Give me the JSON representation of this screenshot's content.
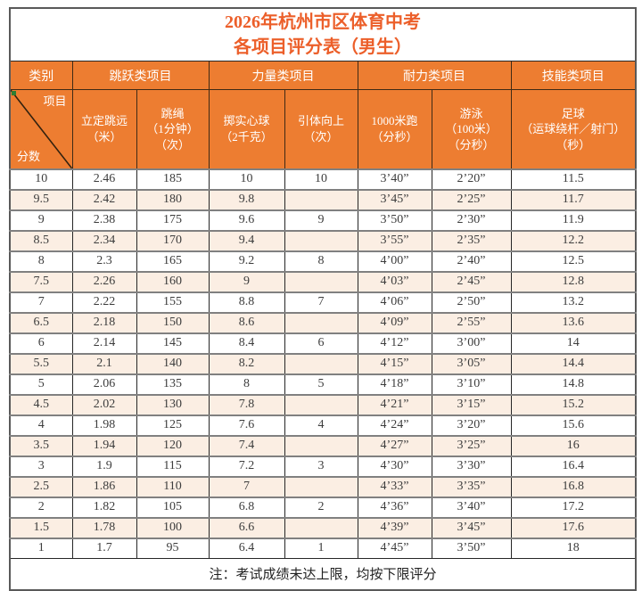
{
  "colors": {
    "header_bg": "#ED7D31",
    "title_text": "#EC5F2A",
    "alt_row_bg": "#FBEEE3",
    "body_text": "#3D3D3D",
    "grid_gray": "#808080",
    "grid_dark": "#262626",
    "outer_border": "#595959",
    "header_text": "#FFFFFF",
    "corner_marker_green": "#2E7D32"
  },
  "title": {
    "line1": "2026年杭州市区体育中考",
    "line2": "各项目评分表（男生）"
  },
  "category_row": {
    "groups": [
      {
        "label": "类别"
      },
      {
        "label": "跳跃类项目"
      },
      {
        "label": "力量类项目"
      },
      {
        "label": "耐力类项目"
      },
      {
        "label": "技能类项目"
      }
    ]
  },
  "column_headers": {
    "corner_top_right": "项目",
    "corner_bottom_left": "分数",
    "items": [
      "立定跳远\n（米）",
      "跳绳\n（1分钟）\n（次）",
      "掷实心球\n（2千克）",
      "引体向上\n（次）",
      "1000米跑\n（分秒）",
      "游泳\n（100米）\n（分秒）",
      "足球\n（运球绕杆／射门）\n（秒）"
    ]
  },
  "table": {
    "rows": [
      {
        "cells": [
          "10",
          "2.46",
          "185",
          "10",
          "10",
          "3’40”",
          "2’20”",
          "11.5"
        ]
      },
      {
        "cells": [
          "9.5",
          "2.42",
          "180",
          "9.8",
          "",
          "3’45”",
          "2’25”",
          "11.7"
        ]
      },
      {
        "cells": [
          "9",
          "2.38",
          "175",
          "9.6",
          "9",
          "3’50”",
          "2’30”",
          "11.9"
        ]
      },
      {
        "cells": [
          "8.5",
          "2.34",
          "170",
          "9.4",
          "",
          "3’55”",
          "2’35”",
          "12.2"
        ]
      },
      {
        "cells": [
          "8",
          "2.3",
          "165",
          "9.2",
          "8",
          "4’00”",
          "2’40”",
          "12.5"
        ]
      },
      {
        "cells": [
          "7.5",
          "2.26",
          "160",
          "9",
          "",
          "4’03”",
          "2’45”",
          "12.8"
        ]
      },
      {
        "cells": [
          "7",
          "2.22",
          "155",
          "8.8",
          "7",
          "4’06”",
          "2’50”",
          "13.2"
        ]
      },
      {
        "cells": [
          "6.5",
          "2.18",
          "150",
          "8.6",
          "",
          "4’09”",
          "2’55”",
          "13.6"
        ]
      },
      {
        "cells": [
          "6",
          "2.14",
          "145",
          "8.4",
          "6",
          "4’12”",
          "3’00”",
          "14"
        ]
      },
      {
        "cells": [
          "5.5",
          "2.1",
          "140",
          "8.2",
          "",
          "4’15”",
          "3’05”",
          "14.4"
        ]
      },
      {
        "cells": [
          "5",
          "2.06",
          "135",
          "8",
          "5",
          "4’18”",
          "3’10”",
          "14.8"
        ]
      },
      {
        "cells": [
          "4.5",
          "2.02",
          "130",
          "7.8",
          "",
          "4’21”",
          "3’15”",
          "15.2"
        ]
      },
      {
        "cells": [
          "4",
          "1.98",
          "125",
          "7.6",
          "4",
          "4’24”",
          "3’20”",
          "15.6"
        ]
      },
      {
        "cells": [
          "3.5",
          "1.94",
          "120",
          "7.4",
          "",
          "4’27”",
          "3’25”",
          "16"
        ]
      },
      {
        "cells": [
          "3",
          "1.9",
          "115",
          "7.2",
          "3",
          "4’30”",
          "3’30”",
          "16.4"
        ]
      },
      {
        "cells": [
          "2.5",
          "1.86",
          "110",
          "7",
          "",
          "4’33”",
          "3’35”",
          "16.8"
        ]
      },
      {
        "cells": [
          "2",
          "1.82",
          "105",
          "6.8",
          "2",
          "4’36”",
          "3’40”",
          "17.2"
        ]
      },
      {
        "cells": [
          "1.5",
          "1.78",
          "100",
          "6.6",
          "",
          "4’39”",
          "3’45”",
          "17.6"
        ]
      },
      {
        "cells": [
          "1",
          "1.7",
          "95",
          "6.4",
          "1",
          "4’45”",
          "3’50”",
          "18"
        ]
      }
    ]
  },
  "footnote": "注：考试成绩未达上限，均按下限评分"
}
